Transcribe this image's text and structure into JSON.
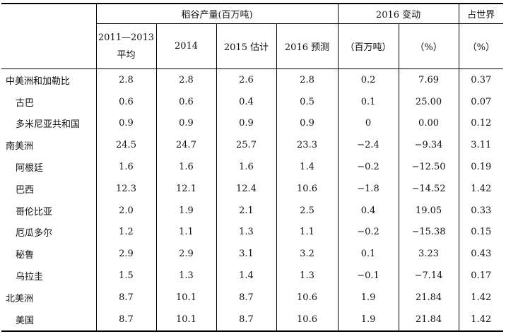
{
  "header": {
    "group_production": "稻谷产量(百万吨)",
    "group_change": "2016 变动",
    "group_share": "占世界",
    "col_avg_line1": "2011—2013",
    "col_avg_line2": "平均",
    "col_2014": "2014",
    "col_2015": "2015 估计",
    "col_2016": "2016 预测",
    "col_change_abs": "（百万吨）",
    "col_change_pct": "（%）",
    "col_share_pct": "（%）"
  },
  "rows": [
    {
      "name": "中美洲和加勒比",
      "sub": false,
      "avg": "2.8",
      "y2014": "2.8",
      "y2015": "2.6",
      "y2016": "2.8",
      "chg": "0.2",
      "pct": "7.69",
      "share": "0.37"
    },
    {
      "name": "古巴",
      "sub": true,
      "avg": "0.6",
      "y2014": "0.6",
      "y2015": "0.4",
      "y2016": "0.5",
      "chg": "0.1",
      "pct": "25.00",
      "share": "0.07"
    },
    {
      "name": "多米尼亚共和国",
      "sub": true,
      "avg": "0.9",
      "y2014": "0.9",
      "y2015": "0.9",
      "y2016": "0.9",
      "chg": "0",
      "pct": "0.00",
      "share": "0.12"
    },
    {
      "name": "南美洲",
      "sub": false,
      "avg": "24.5",
      "y2014": "24.7",
      "y2015": "25.7",
      "y2016": "23.3",
      "chg": "−2.4",
      "pct": "−9.34",
      "share": "3.11"
    },
    {
      "name": "阿根廷",
      "sub": true,
      "avg": "1.6",
      "y2014": "1.6",
      "y2015": "1.6",
      "y2016": "1.4",
      "chg": "−0.2",
      "pct": "−12.50",
      "share": "0.19"
    },
    {
      "name": "巴西",
      "sub": true,
      "avg": "12.3",
      "y2014": "12.1",
      "y2015": "12.4",
      "y2016": "10.6",
      "chg": "−1.8",
      "pct": "−14.52",
      "share": "1.42"
    },
    {
      "name": "哥伦比亚",
      "sub": true,
      "avg": "2.0",
      "y2014": "1.9",
      "y2015": "2.1",
      "y2016": "2.5",
      "chg": "0.4",
      "pct": "19.05",
      "share": "0.33"
    },
    {
      "name": "厄瓜多尔",
      "sub": true,
      "avg": "1.2",
      "y2014": "1.1",
      "y2015": "1.3",
      "y2016": "1.1",
      "chg": "−0.2",
      "pct": "−15.38",
      "share": "0.15"
    },
    {
      "name": "秘鲁",
      "sub": true,
      "avg": "2.9",
      "y2014": "2.9",
      "y2015": "3.1",
      "y2016": "3.2",
      "chg": "0.1",
      "pct": "3.23",
      "share": "0.43"
    },
    {
      "name": "乌拉圭",
      "sub": true,
      "avg": "1.5",
      "y2014": "1.3",
      "y2015": "1.4",
      "y2016": "1.3",
      "chg": "−0.1",
      "pct": "−7.14",
      "share": "0.17"
    },
    {
      "name": "北美洲",
      "sub": false,
      "avg": "8.7",
      "y2014": "10.1",
      "y2015": "8.7",
      "y2016": "10.6",
      "chg": "1.9",
      "pct": "21.84",
      "share": "1.42"
    },
    {
      "name": "美国",
      "sub": true,
      "avg": "8.7",
      "y2014": "10.1",
      "y2015": "8.7",
      "y2016": "10.6",
      "chg": "1.9",
      "pct": "21.84",
      "share": "1.42"
    }
  ]
}
